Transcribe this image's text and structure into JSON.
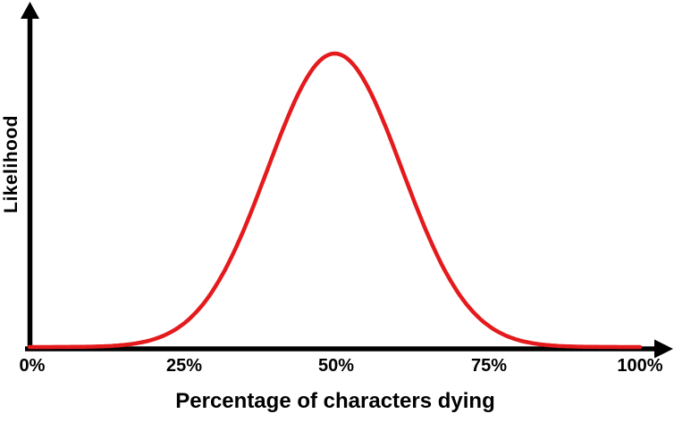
{
  "chart_data": {
    "type": "line",
    "title": "",
    "xlabel": "Percentage of characters dying",
    "ylabel": "Likelihood",
    "x_tick_labels": [
      "0%",
      "25%",
      "50%",
      "75%",
      "100%"
    ],
    "x_tick_values": [
      0,
      25,
      50,
      75,
      100
    ],
    "xlim": [
      0,
      100
    ],
    "y_axis_ticks": "none (unlabeled relative likelihood, bell curve peak = 1.0)",
    "legend": "none",
    "grid": false,
    "series": [
      {
        "name": "likelihood-of-percentage-of-characters-dying",
        "shape": "gaussian",
        "mean": 50,
        "sd": 11,
        "peak": 1.0,
        "x": [
          0,
          5,
          10,
          15,
          20,
          25,
          30,
          35,
          40,
          45,
          50,
          55,
          60,
          65,
          70,
          75,
          80,
          85,
          90,
          95,
          100
        ],
        "y": [
          0.0,
          0.0002,
          0.0013,
          0.0063,
          0.0243,
          0.0757,
          0.1911,
          0.3946,
          0.6618,
          0.9021,
          1.0,
          0.9021,
          0.6618,
          0.3946,
          0.1911,
          0.0757,
          0.0243,
          0.0063,
          0.0013,
          0.0002,
          0.0
        ]
      }
    ],
    "colors": {
      "curve": "#e41a1c",
      "axes": "#000000",
      "text": "#000000",
      "background": "#ffffff"
    }
  }
}
